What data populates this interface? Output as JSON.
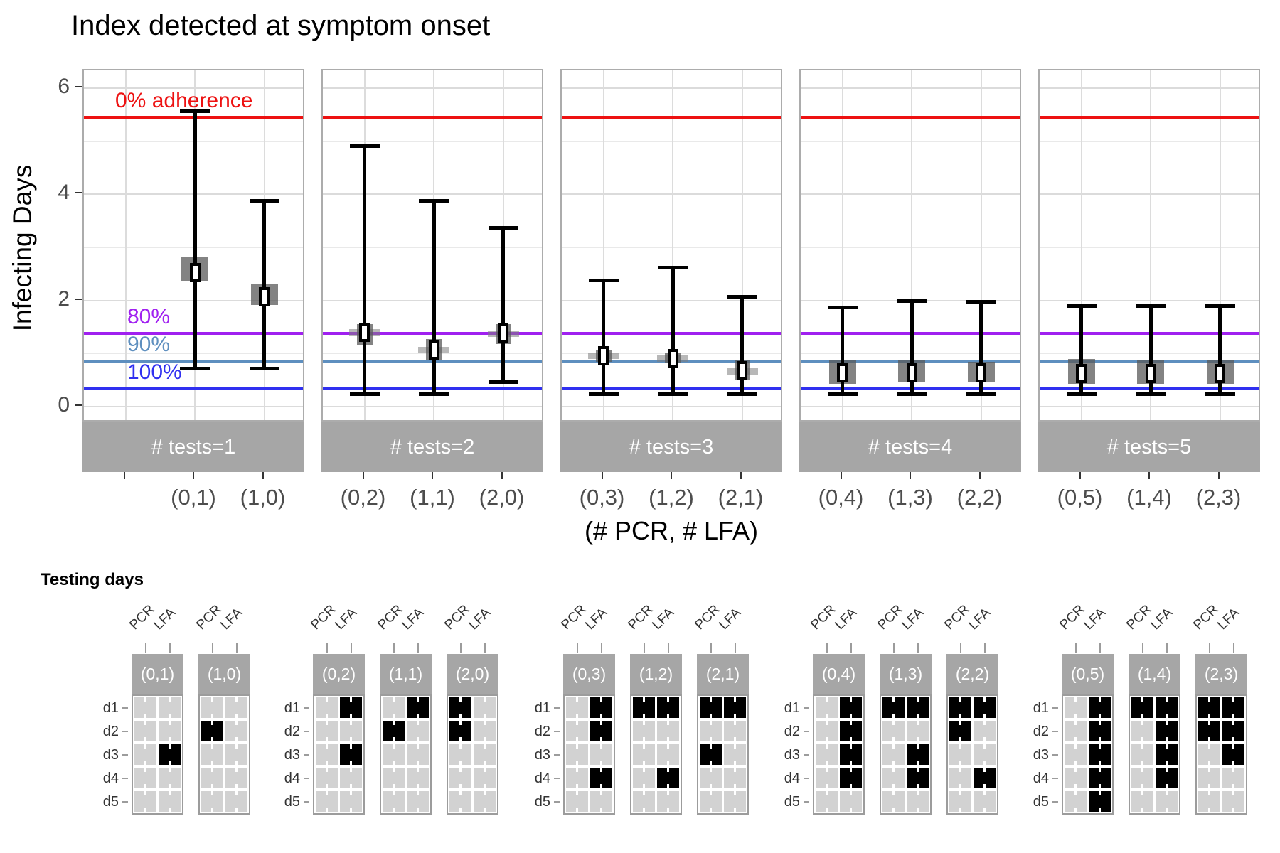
{
  "chart_data": {
    "type": "errorbar",
    "title": "Index detected at symptom onset",
    "y_axis": {
      "label": "Infecting Days",
      "tick_values": [
        6,
        4,
        2,
        0
      ],
      "minor_values": [
        5,
        3,
        1
      ],
      "ylim": [
        -0.3,
        6.35
      ]
    },
    "x_axis": {
      "title": "(# PCR, # LFA)"
    },
    "adherence_lines": [
      {
        "label": "0% adherence",
        "value": 5.45,
        "color": "#ED1111"
      },
      {
        "label": "80%",
        "value": 1.38,
        "color": "#A020F0"
      },
      {
        "label": "90%",
        "value": 0.86,
        "color": "#5E8FBF"
      },
      {
        "label": "100%",
        "value": 0.33,
        "color": "#3030F0"
      }
    ],
    "facets": [
      {
        "strip": "# tests=1",
        "tick_labels": [
          "",
          "(0,1)",
          "(1,0)"
        ],
        "points": [
          {
            "slot": 1,
            "label": "(0,1)",
            "median": 2.52,
            "box": [
              2.37,
              2.81
            ],
            "whisker": [
              0.71,
              5.57
            ],
            "style": "wide"
          },
          {
            "slot": 2,
            "label": "(1,0)",
            "median": 2.07,
            "box": [
              1.91,
              2.3
            ],
            "whisker": [
              0.71,
              3.89
            ],
            "style": "wide"
          }
        ]
      },
      {
        "strip": "# tests=2",
        "tick_labels": [
          "(0,2)",
          "(1,1)",
          "(2,0)"
        ],
        "points": [
          {
            "slot": 0,
            "label": "(0,2)",
            "median": 1.4,
            "box": [
              1.16,
              1.56
            ],
            "whisker": [
              0.23,
              4.91
            ],
            "style": "band"
          },
          {
            "slot": 1,
            "label": "(1,1)",
            "median": 1.07,
            "box": [
              0.87,
              1.27
            ],
            "whisker": [
              0.23,
              3.88
            ],
            "style": "band"
          },
          {
            "slot": 2,
            "label": "(2,0)",
            "median": 1.38,
            "box": [
              1.18,
              1.55
            ],
            "whisker": [
              0.45,
              3.38
            ],
            "style": "band"
          }
        ]
      },
      {
        "strip": "# tests=3",
        "tick_labels": [
          "(0,3)",
          "(1,2)",
          "(2,1)"
        ],
        "points": [
          {
            "slot": 0,
            "label": "(0,3)",
            "median": 0.96,
            "box": [
              0.84,
              1.07
            ],
            "whisker": [
              0.23,
              2.38
            ],
            "style": "band"
          },
          {
            "slot": 1,
            "label": "(1,2)",
            "median": 0.91,
            "box": [
              0.82,
              1.0
            ],
            "whisker": [
              0.23,
              2.63
            ],
            "style": "band"
          },
          {
            "slot": 2,
            "label": "(2,1)",
            "median": 0.67,
            "box": [
              0.49,
              0.87
            ],
            "whisker": [
              0.23,
              2.07
            ],
            "style": "band"
          }
        ]
      },
      {
        "strip": "# tests=4",
        "tick_labels": [
          "(0,4)",
          "(1,3)",
          "(2,2)"
        ],
        "points": [
          {
            "slot": 0,
            "label": "(0,4)",
            "median": 0.64,
            "box": [
              0.43,
              0.87
            ],
            "whisker": [
              0.23,
              1.87
            ],
            "style": "wide"
          },
          {
            "slot": 1,
            "label": "(1,3)",
            "median": 0.64,
            "box": [
              0.45,
              0.88
            ],
            "whisker": [
              0.23,
              2.0
            ],
            "style": "wide"
          },
          {
            "slot": 2,
            "label": "(2,2)",
            "median": 0.64,
            "box": [
              0.45,
              0.85
            ],
            "whisker": [
              0.23,
              1.98
            ],
            "style": "wide"
          }
        ]
      },
      {
        "strip": "# tests=5",
        "tick_labels": [
          "(0,5)",
          "(1,4)",
          "(2,3)"
        ],
        "points": [
          {
            "slot": 0,
            "label": "(0,5)",
            "median": 0.62,
            "box": [
              0.43,
              0.9
            ],
            "whisker": [
              0.23,
              1.9
            ],
            "style": "wide"
          },
          {
            "slot": 1,
            "label": "(1,4)",
            "median": 0.62,
            "box": [
              0.43,
              0.88
            ],
            "whisker": [
              0.23,
              1.9
            ],
            "style": "wide"
          },
          {
            "slot": 2,
            "label": "(2,3)",
            "median": 0.62,
            "box": [
              0.43,
              0.88
            ],
            "whisker": [
              0.23,
              1.9
            ],
            "style": "wide"
          }
        ]
      }
    ]
  },
  "testing_days": {
    "heading": "Testing days",
    "column_labels": [
      "PCR",
      "LFA"
    ],
    "row_labels": [
      "d1",
      "d2",
      "d3",
      "d4",
      "d5"
    ],
    "groups": [
      {
        "tables": [
          {
            "label": "(0,1)",
            "pcr": [],
            "lfa": [
              3
            ]
          },
          {
            "label": "(1,0)",
            "pcr": [
              2
            ],
            "lfa": []
          }
        ]
      },
      {
        "tables": [
          {
            "label": "(0,2)",
            "pcr": [],
            "lfa": [
              1,
              3
            ]
          },
          {
            "label": "(1,1)",
            "pcr": [
              2
            ],
            "lfa": [
              1
            ]
          },
          {
            "label": "(2,0)",
            "pcr": [
              1,
              2
            ],
            "lfa": []
          }
        ]
      },
      {
        "tables": [
          {
            "label": "(0,3)",
            "pcr": [],
            "lfa": [
              1,
              2,
              4
            ]
          },
          {
            "label": "(1,2)",
            "pcr": [
              1
            ],
            "lfa": [
              1,
              4
            ]
          },
          {
            "label": "(2,1)",
            "pcr": [
              1,
              3
            ],
            "lfa": [
              1
            ]
          }
        ]
      },
      {
        "tables": [
          {
            "label": "(0,4)",
            "pcr": [],
            "lfa": [
              1,
              2,
              3,
              4
            ]
          },
          {
            "label": "(1,3)",
            "pcr": [
              1
            ],
            "lfa": [
              1,
              3,
              4
            ]
          },
          {
            "label": "(2,2)",
            "pcr": [
              1,
              2
            ],
            "lfa": [
              1,
              4
            ]
          }
        ]
      },
      {
        "tables": [
          {
            "label": "(0,5)",
            "pcr": [],
            "lfa": [
              1,
              2,
              3,
              4,
              5
            ]
          },
          {
            "label": "(1,4)",
            "pcr": [
              1
            ],
            "lfa": [
              1,
              2,
              3,
              4
            ]
          },
          {
            "label": "(2,3)",
            "pcr": [
              1,
              2
            ],
            "lfa": [
              1,
              2,
              3
            ]
          }
        ]
      }
    ]
  }
}
